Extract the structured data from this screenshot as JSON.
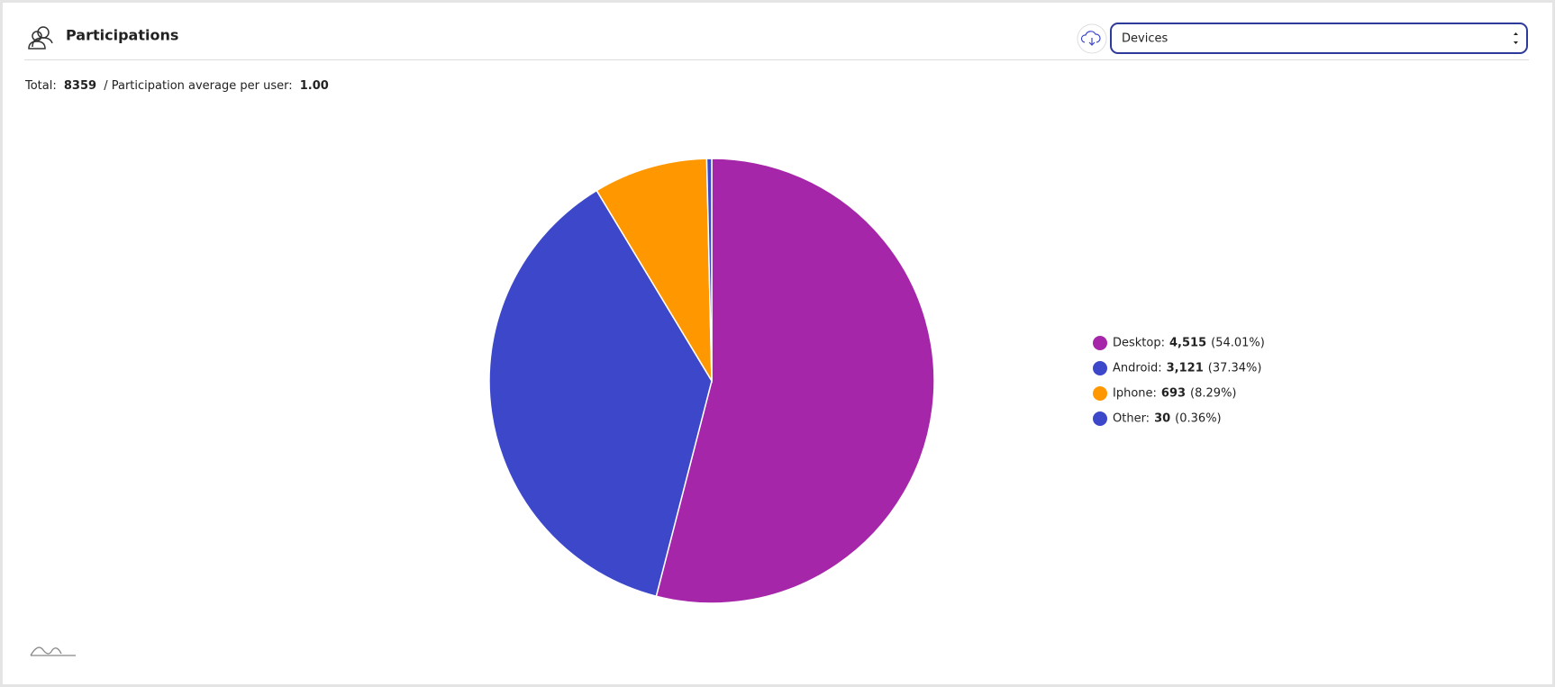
{
  "header": {
    "title": "Participations",
    "select": "Devices"
  },
  "summary": {
    "total_label": "Total:",
    "total": 8359,
    "average_label": "/ Participation average per user:",
    "average": "1.00"
  },
  "chart_data": {
    "type": "pie",
    "categories": [
      "Desktop:",
      "Android:",
      "Iphone:",
      "Other:"
    ],
    "values": [
      4515,
      3121,
      693,
      30
    ],
    "value_labels": [
      "4,515",
      "3,121",
      "693",
      "30"
    ],
    "percent_labels": [
      "(54.01%)",
      "(37.34%)",
      "(8.29%)",
      "(0.36%)"
    ],
    "colors": [
      "#a626aa",
      "#3c48c9",
      "#ff9800",
      "#3c48c9"
    ],
    "legend": "right"
  }
}
